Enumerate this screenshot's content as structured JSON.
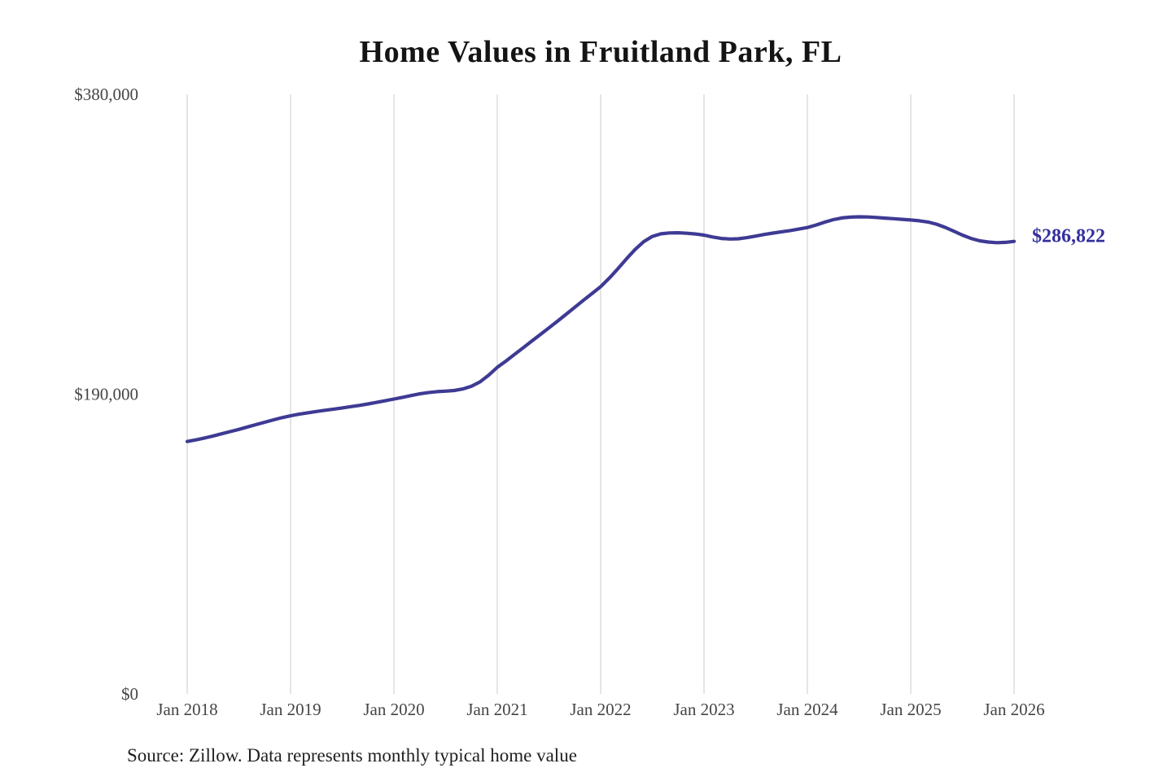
{
  "chart_data": {
    "type": "line",
    "title": "Home Values in Fruitland Park, FL",
    "source_note": "Source: Zillow. Data represents monthly typical home value",
    "ylabel": "",
    "xlabel": "",
    "ylim": [
      0,
      380000
    ],
    "grid": "vertical-only",
    "legend_position": "none",
    "y_ticks": [
      {
        "value": 0,
        "label": "$0"
      },
      {
        "value": 190000,
        "label": "$190,000"
      },
      {
        "value": 380000,
        "label": "$380,000"
      }
    ],
    "x_ticks": [
      {
        "month_index": 0,
        "label": "Jan 2018"
      },
      {
        "month_index": 12,
        "label": "Jan 2019"
      },
      {
        "month_index": 24,
        "label": "Jan 2020"
      },
      {
        "month_index": 36,
        "label": "Jan 2021"
      },
      {
        "month_index": 48,
        "label": "Jan 2022"
      },
      {
        "month_index": 60,
        "label": "Jan 2023"
      },
      {
        "month_index": 72,
        "label": "Jan 2024"
      },
      {
        "month_index": 84,
        "label": "Jan 2025"
      },
      {
        "month_index": 96,
        "label": "Jan 2026"
      }
    ],
    "series": [
      {
        "name": "Monthly typical home value",
        "x_start_label": "Jan 2018",
        "x_end_label": "Jan 2026",
        "values": [
          160000,
          161000,
          162200,
          163500,
          164900,
          166300,
          167700,
          169200,
          170700,
          172200,
          173700,
          175100,
          176300,
          177300,
          178200,
          179000,
          179800,
          180500,
          181300,
          182100,
          182900,
          183800,
          184800,
          185800,
          186900,
          188000,
          189100,
          190200,
          191000,
          191600,
          191900,
          192300,
          193300,
          195000,
          197800,
          202000,
          207000,
          211000,
          215200,
          219400,
          223600,
          227800,
          232000,
          236300,
          240700,
          245100,
          249500,
          253800,
          258100,
          263500,
          269500,
          275800,
          281700,
          286600,
          290000,
          291600,
          292200,
          292300,
          292000,
          291500,
          290800,
          289600,
          288700,
          288300,
          288500,
          289200,
          290200,
          291200,
          292100,
          292900,
          293700,
          294600,
          295600,
          297200,
          299000,
          300600,
          301700,
          302200,
          302400,
          302300,
          302000,
          301600,
          301200,
          300800,
          300400,
          299900,
          299100,
          297700,
          295700,
          293300,
          290800,
          288700,
          287200,
          286400,
          286000,
          286200,
          286822
        ]
      }
    ],
    "end_annotation": {
      "label": "$286,822",
      "value": 286822
    },
    "colors": {
      "line": "#3e3a94",
      "annotation": "#34309c",
      "grid": "#cbcbcb",
      "tick_text": "#454545",
      "title_text": "#141414",
      "source_text": "#1f1f1f",
      "background": "#ffffff"
    }
  }
}
